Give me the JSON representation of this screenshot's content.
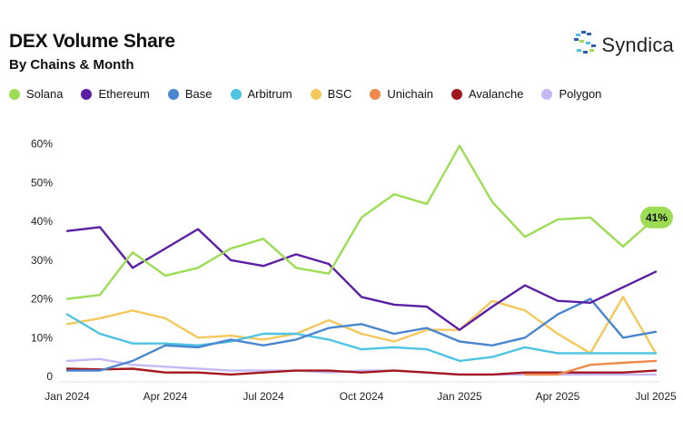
{
  "header": {
    "title": "DEX Volume Share",
    "subtitle": "By Chains & Month",
    "brand": "Syndica"
  },
  "chart_data": {
    "type": "line",
    "title": "DEX Volume Share",
    "subtitle": "By Chains & Month",
    "x": [
      "2024-01",
      "2024-02",
      "2024-03",
      "2024-04",
      "2024-05",
      "2024-06",
      "2024-07",
      "2024-08",
      "2024-09",
      "2024-10",
      "2024-11",
      "2024-12",
      "2025-01",
      "2025-02",
      "2025-03",
      "2025-04",
      "2025-05",
      "2025-06",
      "2025-07"
    ],
    "x_tick_labels": [
      {
        "index": 0,
        "label": "Jan 2024"
      },
      {
        "index": 3,
        "label": "Apr 2024"
      },
      {
        "index": 6,
        "label": "Jul 2024"
      },
      {
        "index": 9,
        "label": "Oct 2024"
      },
      {
        "index": 12,
        "label": "Jan 2025"
      },
      {
        "index": 15,
        "label": "Apr 2025"
      },
      {
        "index": 18,
        "label": "Jul 2025"
      }
    ],
    "y_ticks": [
      0,
      10,
      20,
      30,
      40,
      50,
      60
    ],
    "y_tick_labels": [
      "0",
      "10%",
      "20%",
      "30%",
      "40%",
      "50%",
      "60%"
    ],
    "ylim": [
      0,
      62
    ],
    "grid": false,
    "legend": "top",
    "series": [
      {
        "name": "Solana",
        "color": "#9ddd55",
        "values": [
          20,
          21,
          32,
          26,
          28,
          33,
          35.5,
          28,
          26.5,
          41,
          47,
          44.5,
          59.5,
          45,
          36,
          40.5,
          41,
          33.5,
          41
        ]
      },
      {
        "name": "Ethereum",
        "color": "#5b1fa6",
        "values": [
          37.5,
          38.5,
          28,
          33,
          38,
          30,
          28.5,
          31.5,
          29,
          20.5,
          18.5,
          18,
          12,
          18,
          23.5,
          19.5,
          19,
          23,
          27
        ]
      },
      {
        "name": "Base",
        "color": "#4a86d0",
        "values": [
          1.5,
          1.5,
          4,
          8,
          7.5,
          9.5,
          8,
          9.5,
          12.5,
          13.5,
          11,
          12.5,
          9,
          8,
          10,
          16,
          20,
          10,
          11.5
        ]
      },
      {
        "name": "Arbitrum",
        "color": "#4dc4e4",
        "values": [
          16,
          11,
          8.5,
          8.5,
          8,
          9,
          11,
          11,
          9.5,
          7,
          7.5,
          7,
          4,
          5,
          7.5,
          6,
          6,
          6,
          6
        ]
      },
      {
        "name": "BSC",
        "color": "#f5c85c",
        "values": [
          13.5,
          15,
          17,
          15,
          10,
          10.5,
          9.5,
          11,
          14.5,
          11,
          9,
          12,
          12,
          19.5,
          17,
          11,
          6,
          20.5,
          6
        ]
      },
      {
        "name": "Unichain",
        "color": "#f08a4b",
        "values": [
          null,
          null,
          null,
          null,
          null,
          null,
          null,
          null,
          null,
          null,
          null,
          null,
          null,
          null,
          0.5,
          0.5,
          3,
          3.5,
          4
        ]
      },
      {
        "name": "Avalanche",
        "color": "#a3171f",
        "values": [
          2,
          1.8,
          2,
          1,
          1,
          0.5,
          1,
          1.5,
          1.5,
          1,
          1.5,
          1,
          0.5,
          0.5,
          1,
          1,
          1,
          1,
          1.5
        ]
      },
      {
        "name": "Polygon",
        "color": "#c6b8f5",
        "values": [
          4,
          4.5,
          3,
          2.5,
          2,
          1.5,
          1.5,
          1.5,
          1,
          1.5,
          1.5,
          1,
          0.5,
          0.5,
          0.5,
          0.5,
          0.5,
          0.5,
          0.5
        ]
      }
    ],
    "annotation": {
      "series": "Solana",
      "index": 18,
      "label": "41%"
    }
  }
}
